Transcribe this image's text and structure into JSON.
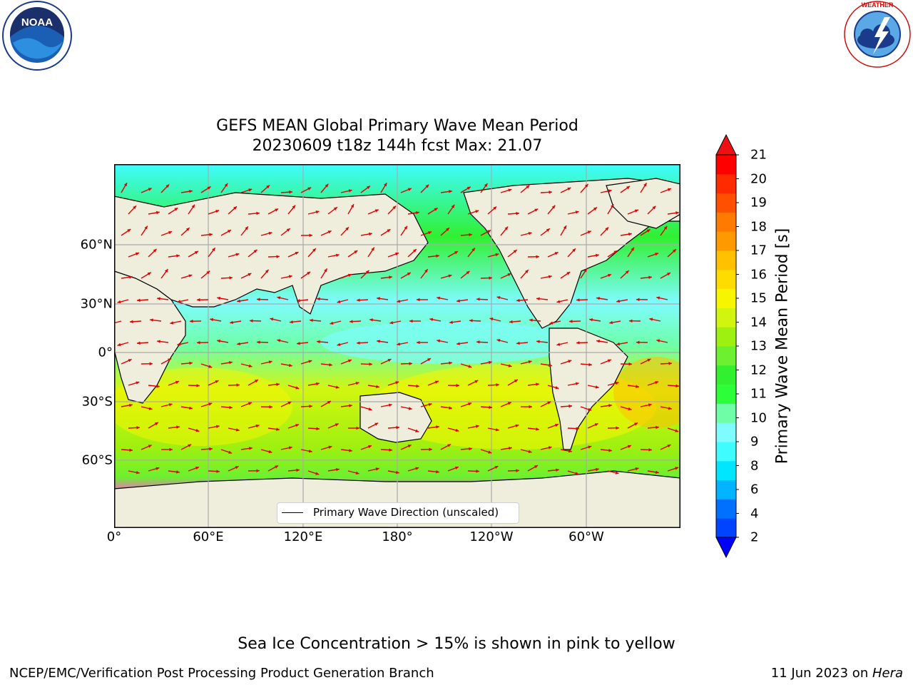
{
  "title_line1": "GEFS MEAN Global Primary Wave Mean Period",
  "title_line2": "20230609 t18z 144h fcst   Max: 21.07",
  "logos": {
    "left": "NOAA",
    "right": "NATIONAL WEATHER SERVICE"
  },
  "map": {
    "projection": "equirectangular, centered 180°",
    "x_ticks": [
      "0°",
      "60°E",
      "120°E",
      "180°",
      "120°W",
      "60°W"
    ],
    "y_ticks": [
      "60°N",
      "30°N",
      "0°",
      "30°S",
      "60°S"
    ],
    "land_color": "#efeddc",
    "ice_color": "#ff66cc",
    "arrow_color": "#e00000",
    "legend_label": "Primary Wave Direction (unscaled)"
  },
  "colorbar": {
    "label": "Primary Wave Mean Period [s]",
    "ticks": [
      "2",
      "4",
      "6",
      "8",
      "9",
      "10",
      "11",
      "12",
      "13",
      "14",
      "15",
      "16",
      "17",
      "18",
      "19",
      "20",
      "21"
    ],
    "colors": [
      "#0044ff",
      "#0070ff",
      "#00b4ff",
      "#00e6ff",
      "#3ffcff",
      "#7ffcff",
      "#6effa6",
      "#2cff3a",
      "#30f030",
      "#6cf030",
      "#9ef010",
      "#d2f510",
      "#f7f500",
      "#ffdc00",
      "#ffc000",
      "#ff9900",
      "#ff7a00",
      "#ff5000",
      "#ff2a00",
      "#ff0000"
    ],
    "extend_low": "#0000ff",
    "extend_high": "#ee1111"
  },
  "ice_note": "Sea Ice Concentration > 15% is shown in pink to yellow",
  "footer": {
    "left": "NCEP/EMC/Verification Post Processing Product Generation Branch",
    "right_date": "11 Jun 2023 on ",
    "right_host": "Hera"
  }
}
